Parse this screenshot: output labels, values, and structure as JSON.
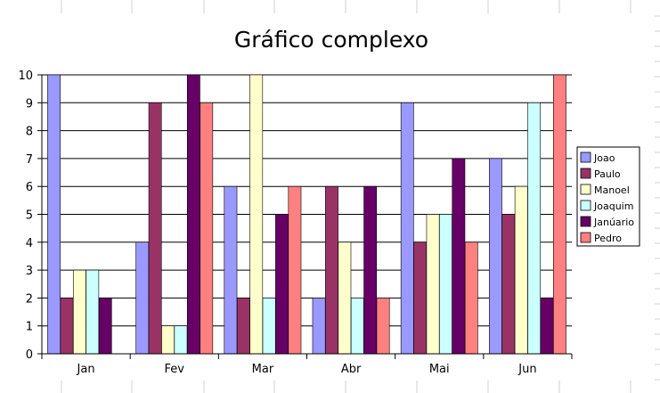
{
  "spreadsheet": {
    "gridline_color": "#d0d0d0"
  },
  "chart_data": {
    "type": "bar",
    "title": "Gráfico complexo",
    "xlabel": "",
    "ylabel": "",
    "categories": [
      "Jan",
      "Fev",
      "Mar",
      "Abr",
      "Mai",
      "Jun"
    ],
    "ylim": [
      0,
      10
    ],
    "yticks": [
      "0",
      "1",
      "2",
      "3",
      "4",
      "5",
      "6",
      "7",
      "8",
      "9",
      "10"
    ],
    "grid": true,
    "legend_position": "right",
    "series": [
      {
        "name": "Joao",
        "color": "#9999ff",
        "values": [
          10,
          4,
          6,
          2,
          9,
          7
        ]
      },
      {
        "name": "Paulo",
        "color": "#993366",
        "values": [
          2,
          9,
          2,
          6,
          4,
          5
        ]
      },
      {
        "name": "Manoel",
        "color": "#ffffcc",
        "values": [
          3,
          1,
          10,
          4,
          5,
          6
        ]
      },
      {
        "name": "Joaquim",
        "color": "#ccffff",
        "values": [
          3,
          1,
          2,
          2,
          5,
          9
        ]
      },
      {
        "name": "Janúario",
        "color": "#660066",
        "values": [
          2,
          10,
          5,
          6,
          7,
          2
        ]
      },
      {
        "name": "Pedro",
        "color": "#ff8080",
        "values": [
          0,
          9,
          6,
          2,
          4,
          10
        ]
      }
    ]
  }
}
